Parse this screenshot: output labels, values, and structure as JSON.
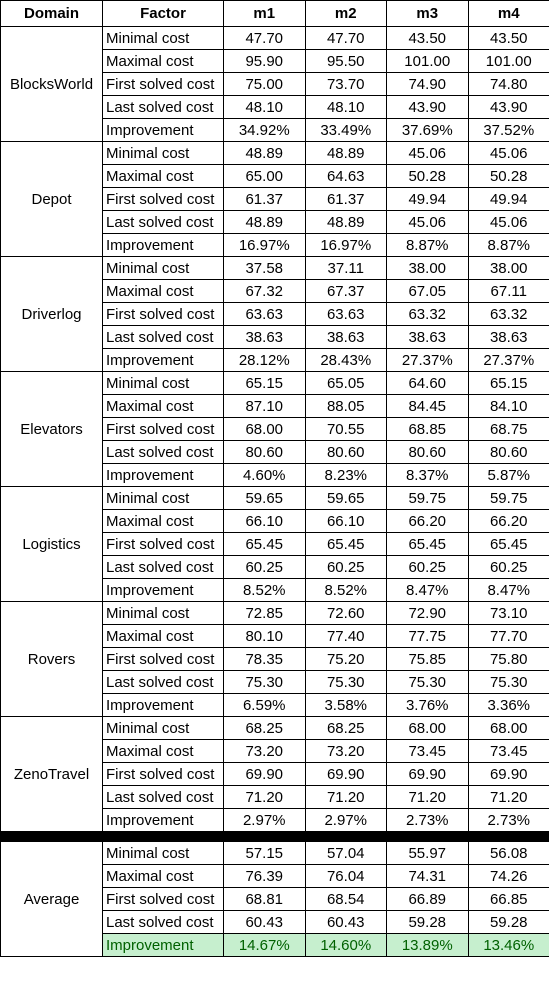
{
  "headers": [
    "Domain",
    "Factor",
    "m1",
    "m2",
    "m3",
    "m4"
  ],
  "groups": [
    {
      "domain": "BlocksWorld",
      "rows": [
        {
          "factor": "Minimal cost",
          "values": [
            "47.70",
            "47.70",
            "43.50",
            "43.50"
          ]
        },
        {
          "factor": "Maximal cost",
          "values": [
            "95.90",
            "95.50",
            "101.00",
            "101.00"
          ]
        },
        {
          "factor": "First solved cost",
          "values": [
            "75.00",
            "73.70",
            "74.90",
            "74.80"
          ]
        },
        {
          "factor": "Last solved cost",
          "values": [
            "48.10",
            "48.10",
            "43.90",
            "43.90"
          ]
        },
        {
          "factor": "Improvement",
          "values": [
            "34.92%",
            "33.49%",
            "37.69%",
            "37.52%"
          ]
        }
      ]
    },
    {
      "domain": "Depot",
      "rows": [
        {
          "factor": "Minimal cost",
          "values": [
            "48.89",
            "48.89",
            "45.06",
            "45.06"
          ]
        },
        {
          "factor": "Maximal cost",
          "values": [
            "65.00",
            "64.63",
            "50.28",
            "50.28"
          ]
        },
        {
          "factor": "First solved cost",
          "values": [
            "61.37",
            "61.37",
            "49.94",
            "49.94"
          ]
        },
        {
          "factor": "Last solved cost",
          "values": [
            "48.89",
            "48.89",
            "45.06",
            "45.06"
          ]
        },
        {
          "factor": "Improvement",
          "values": [
            "16.97%",
            "16.97%",
            "8.87%",
            "8.87%"
          ]
        }
      ]
    },
    {
      "domain": "Driverlog",
      "rows": [
        {
          "factor": "Minimal cost",
          "values": [
            "37.58",
            "37.11",
            "38.00",
            "38.00"
          ]
        },
        {
          "factor": "Maximal cost",
          "values": [
            "67.32",
            "67.37",
            "67.05",
            "67.11"
          ]
        },
        {
          "factor": "First solved cost",
          "values": [
            "63.63",
            "63.63",
            "63.32",
            "63.32"
          ]
        },
        {
          "factor": "Last solved cost",
          "values": [
            "38.63",
            "38.63",
            "38.63",
            "38.63"
          ]
        },
        {
          "factor": "Improvement",
          "values": [
            "28.12%",
            "28.43%",
            "27.37%",
            "27.37%"
          ]
        }
      ]
    },
    {
      "domain": "Elevators",
      "rows": [
        {
          "factor": "Minimal cost",
          "values": [
            "65.15",
            "65.05",
            "64.60",
            "65.15"
          ]
        },
        {
          "factor": "Maximal cost",
          "values": [
            "87.10",
            "88.05",
            "84.45",
            "84.10"
          ]
        },
        {
          "factor": "First solved cost",
          "values": [
            "68.00",
            "70.55",
            "68.85",
            "68.75"
          ]
        },
        {
          "factor": "Last solved cost",
          "values": [
            "80.60",
            "80.60",
            "80.60",
            "80.60"
          ]
        },
        {
          "factor": "Improvement",
          "values": [
            "4.60%",
            "8.23%",
            "8.37%",
            "5.87%"
          ]
        }
      ]
    },
    {
      "domain": "Logistics",
      "rows": [
        {
          "factor": "Minimal cost",
          "values": [
            "59.65",
            "59.65",
            "59.75",
            "59.75"
          ]
        },
        {
          "factor": "Maximal cost",
          "values": [
            "66.10",
            "66.10",
            "66.20",
            "66.20"
          ]
        },
        {
          "factor": "First solved cost",
          "values": [
            "65.45",
            "65.45",
            "65.45",
            "65.45"
          ]
        },
        {
          "factor": "Last solved cost",
          "values": [
            "60.25",
            "60.25",
            "60.25",
            "60.25"
          ]
        },
        {
          "factor": "Improvement",
          "values": [
            "8.52%",
            "8.52%",
            "8.47%",
            "8.47%"
          ]
        }
      ]
    },
    {
      "domain": "Rovers",
      "rows": [
        {
          "factor": "Minimal cost",
          "values": [
            "72.85",
            "72.60",
            "72.90",
            "73.10"
          ]
        },
        {
          "factor": "Maximal cost",
          "values": [
            "80.10",
            "77.40",
            "77.75",
            "77.70"
          ]
        },
        {
          "factor": "First solved cost",
          "values": [
            "78.35",
            "75.20",
            "75.85",
            "75.80"
          ]
        },
        {
          "factor": "Last solved cost",
          "values": [
            "75.30",
            "75.30",
            "75.30",
            "75.30"
          ]
        },
        {
          "factor": "Improvement",
          "values": [
            "6.59%",
            "3.58%",
            "3.76%",
            "3.36%"
          ]
        }
      ]
    },
    {
      "domain": "ZenoTravel",
      "rows": [
        {
          "factor": "Minimal cost",
          "values": [
            "68.25",
            "68.25",
            "68.00",
            "68.00"
          ]
        },
        {
          "factor": "Maximal cost",
          "values": [
            "73.20",
            "73.20",
            "73.45",
            "73.45"
          ]
        },
        {
          "factor": "First solved cost",
          "values": [
            "69.90",
            "69.90",
            "69.90",
            "69.90"
          ]
        },
        {
          "factor": "Last solved cost",
          "values": [
            "71.20",
            "71.20",
            "71.20",
            "71.20"
          ]
        },
        {
          "factor": "Improvement",
          "values": [
            "2.97%",
            "2.97%",
            "2.73%",
            "2.73%"
          ]
        }
      ]
    }
  ],
  "average": {
    "domain": "Average",
    "rows": [
      {
        "factor": "Minimal cost",
        "values": [
          "57.15",
          "57.04",
          "55.97",
          "56.08"
        ]
      },
      {
        "factor": "Maximal cost",
        "values": [
          "76.39",
          "76.04",
          "74.31",
          "74.26"
        ]
      },
      {
        "factor": "First solved cost",
        "values": [
          "68.81",
          "68.54",
          "66.89",
          "66.85"
        ]
      },
      {
        "factor": "Last solved cost",
        "values": [
          "60.43",
          "60.43",
          "59.28",
          "59.28"
        ]
      },
      {
        "factor": "Improvement",
        "values": [
          "14.67%",
          "14.60%",
          "13.89%",
          "13.46%"
        ]
      }
    ],
    "highlight_color": "#c6efce",
    "highlight_text_color": "#006100"
  }
}
